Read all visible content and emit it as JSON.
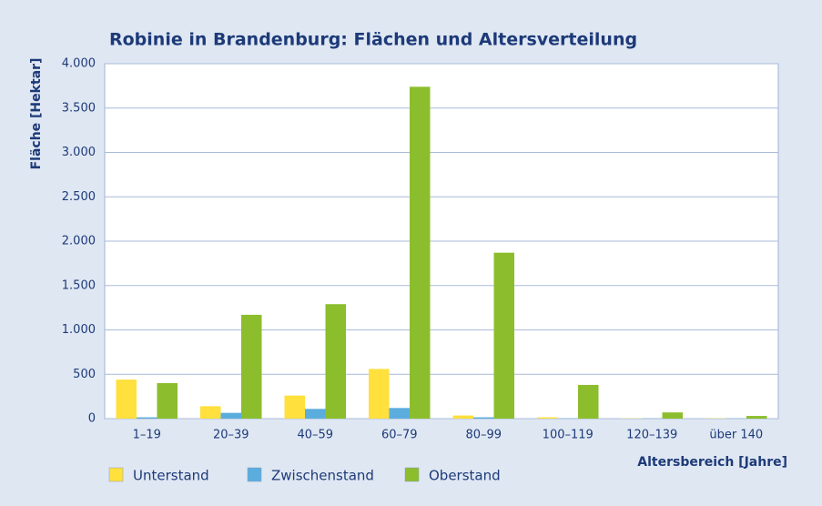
{
  "chart_data": {
    "type": "bar",
    "title": "Robinie in Brandenburg: Flächen und Altersverteilung",
    "y_label": "Fläche [Hektar]",
    "x_label": "Altersbereich [Jahre]",
    "categories": [
      "1–19",
      "20–39",
      "40–59",
      "60–79",
      "80–99",
      "100–119",
      "120–139",
      "über 140"
    ],
    "series": [
      {
        "name": "Unterstand",
        "color": "#ffe03c",
        "values": [
          440,
          140,
          260,
          560,
          35,
          15,
          3,
          3
        ]
      },
      {
        "name": "Zwischenstand",
        "color": "#5badde",
        "values": [
          15,
          65,
          110,
          120,
          15,
          3,
          2,
          2
        ]
      },
      {
        "name": "Oberstand",
        "color": "#8cbd2c",
        "values": [
          400,
          1170,
          1290,
          3740,
          1870,
          380,
          70,
          30
        ]
      }
    ],
    "ylim": [
      0,
      4000
    ],
    "yticks": [
      0,
      500,
      {
        "value": 1000,
        "label": "1.000"
      },
      {
        "value": 1500,
        "label": "1.500"
      },
      {
        "value": 2000,
        "label": "2.000"
      },
      {
        "value": 2500,
        "label": "2.500"
      },
      {
        "value": 3000,
        "label": "3.000"
      },
      {
        "value": 3500,
        "label": "3.500"
      },
      {
        "value": 4000,
        "label": "4.000"
      }
    ],
    "grid": true,
    "legend": "bottom-left"
  }
}
